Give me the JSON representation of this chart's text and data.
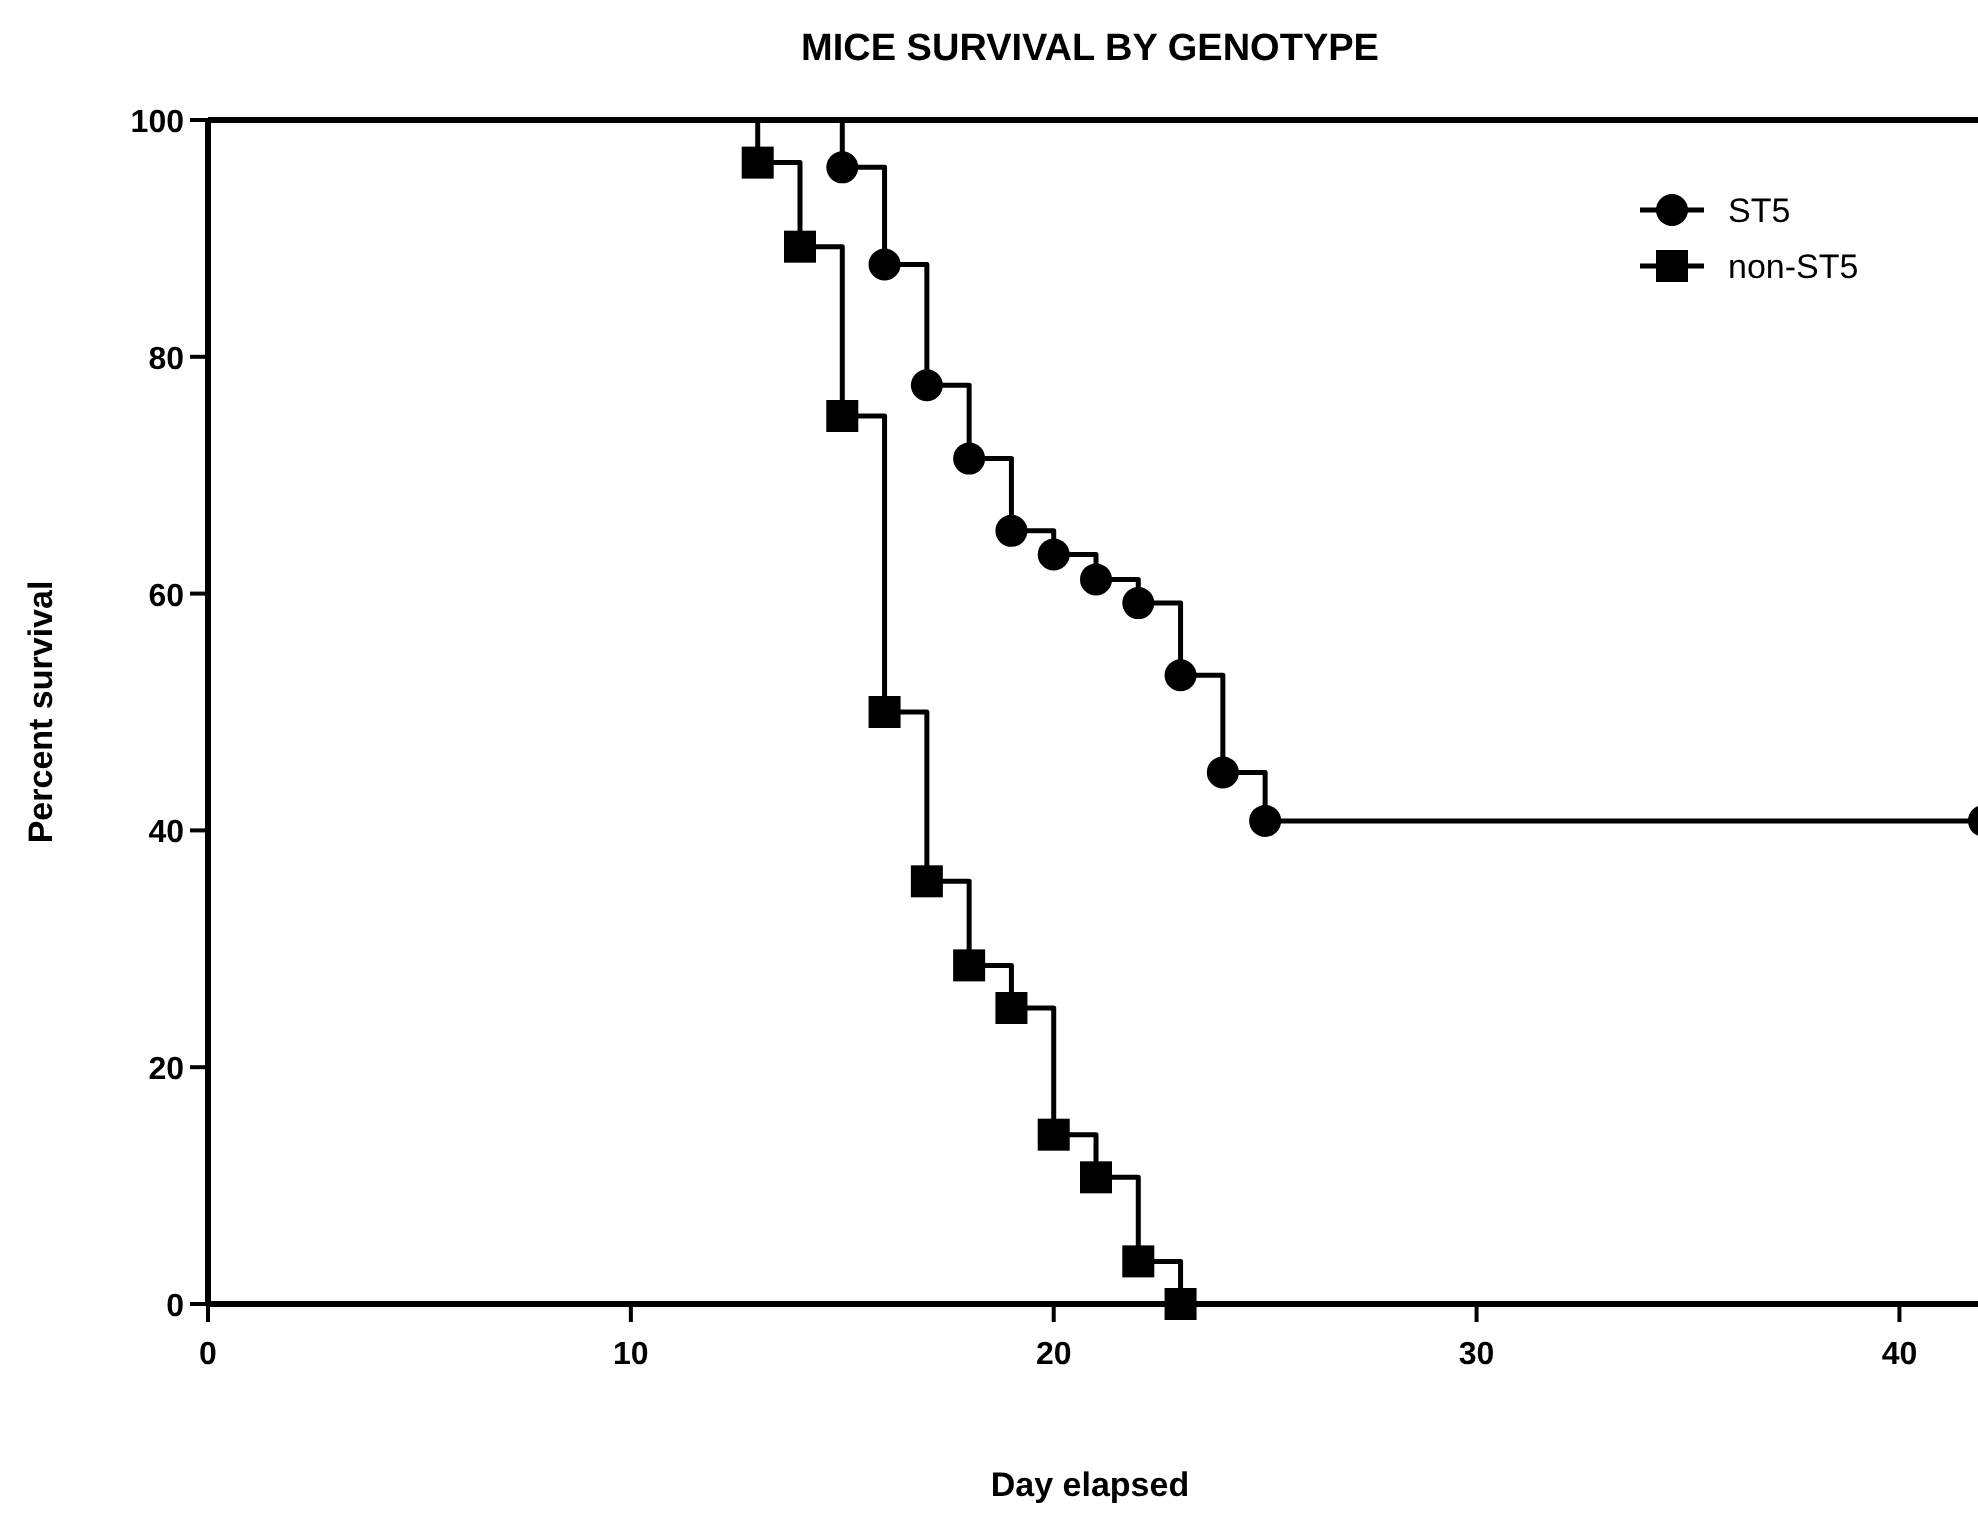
{
  "chart_data": {
    "type": "step",
    "title": "MICE SURVIVAL BY GENOTYPE",
    "xlabel": "Day elapsed",
    "ylabel": "Percent survival",
    "xlim": [
      0,
      42
    ],
    "ylim": [
      0,
      100
    ],
    "xticks": [
      0,
      10,
      20,
      30,
      40
    ],
    "yticks": [
      0,
      20,
      40,
      60,
      80,
      100
    ],
    "grid": false,
    "legend": "top right",
    "line_style": "solid",
    "series": [
      {
        "name": "ST5",
        "color": "#000000",
        "marker": "circle",
        "x": [
          0,
          15,
          16,
          17,
          18,
          19,
          20,
          21,
          22,
          23,
          24,
          25,
          42
        ],
        "values": [
          100,
          96,
          87.8,
          77.6,
          71.4,
          65.3,
          63.3,
          61.2,
          59.2,
          53.1,
          44.9,
          40.8,
          40.8
        ]
      },
      {
        "name": "non-ST5",
        "color": "#000000",
        "marker": "square",
        "x": [
          0,
          13,
          14,
          15,
          16,
          17,
          18,
          19,
          20,
          21,
          22,
          23
        ],
        "values": [
          100,
          96.4,
          89.3,
          75,
          50,
          35.7,
          28.6,
          25,
          14.3,
          10.7,
          3.6,
          0
        ]
      }
    ]
  }
}
